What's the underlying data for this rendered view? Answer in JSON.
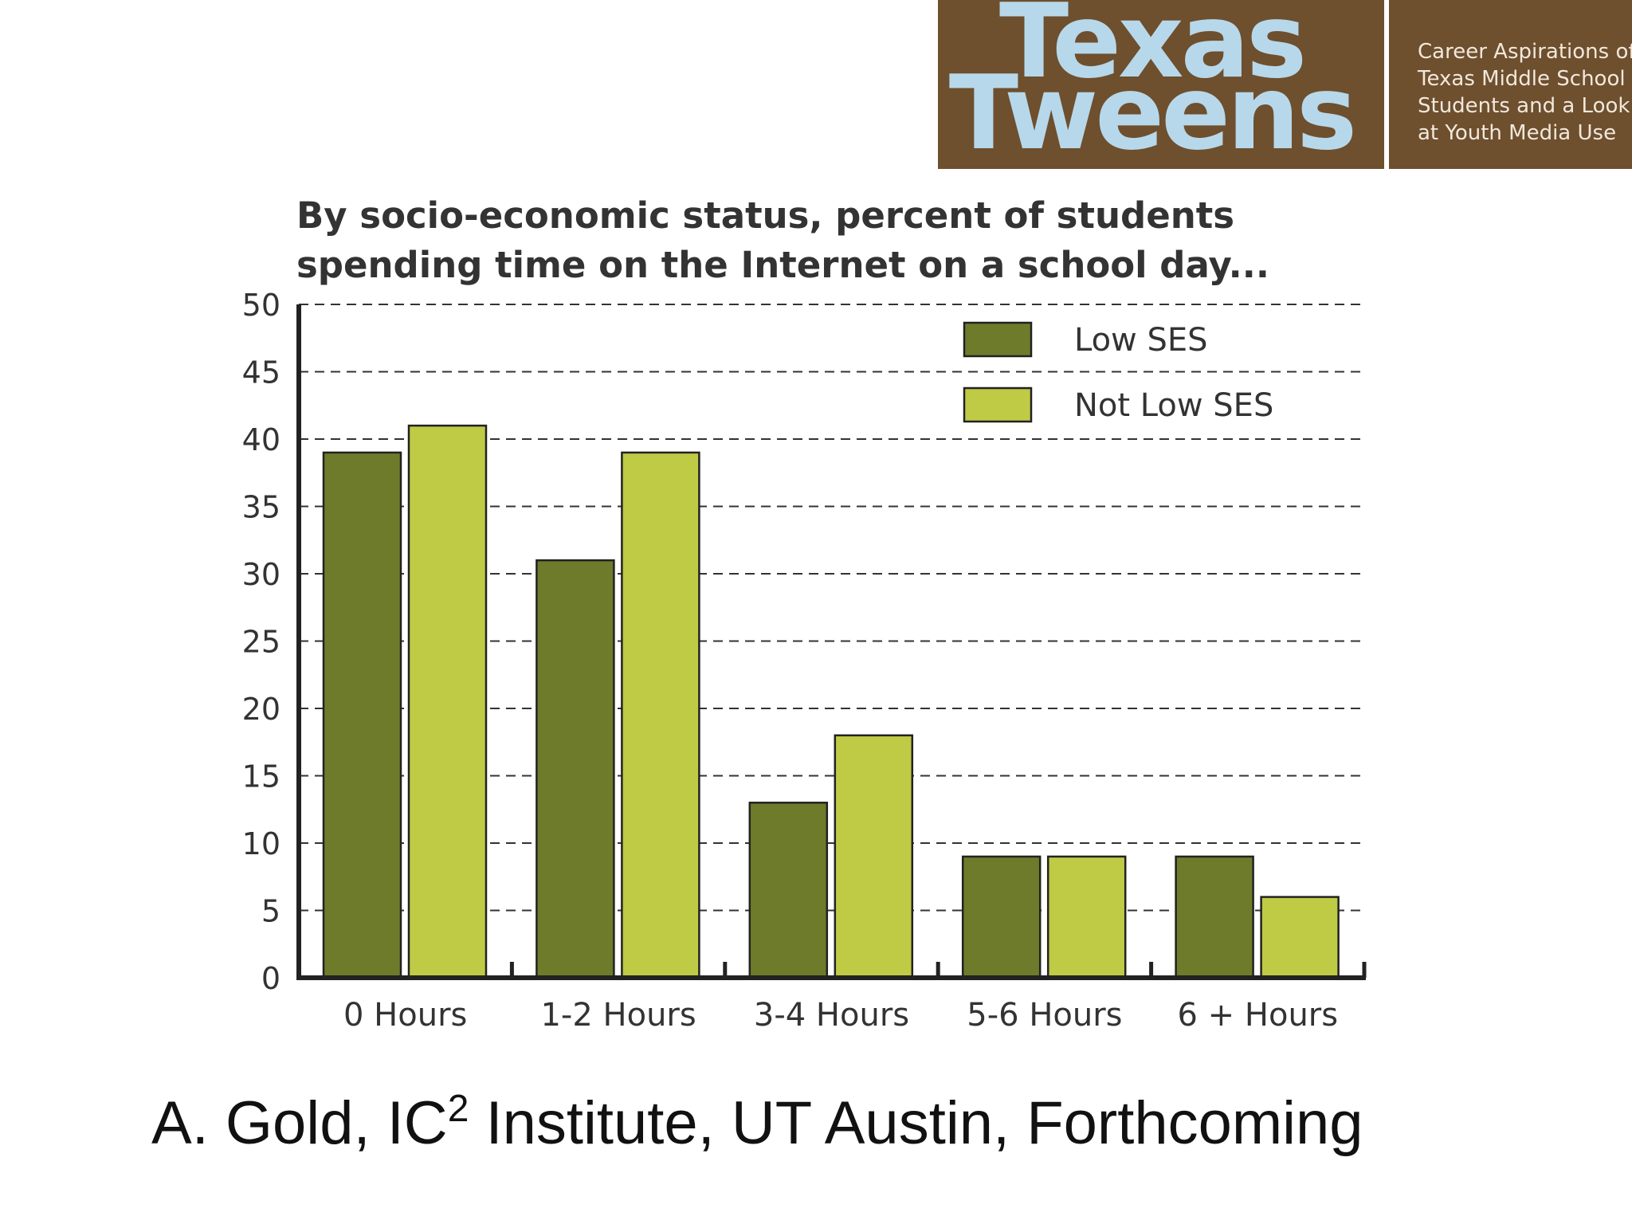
{
  "logo": {
    "line1": "Texas",
    "line2": "Tweens",
    "tagline": [
      "Career Aspirations of",
      "Texas Middle School",
      "Students and a Look",
      "at Youth Media Use"
    ],
    "bg_color": "#6e4f2e",
    "text_color": "#b7d8ea"
  },
  "chart_data": {
    "type": "bar",
    "title": [
      "By socio-economic status, percent of students",
      "spending time on the Internet on a school day..."
    ],
    "categories": [
      "0 Hours",
      "1-2 Hours",
      "3-4 Hours",
      "5-6 Hours",
      "6 + Hours"
    ],
    "series": [
      {
        "name": "Low SES",
        "color": "#6e7b2a",
        "values": [
          39,
          31,
          13,
          9,
          9
        ]
      },
      {
        "name": "Not Low SES",
        "color": "#bfca45",
        "values": [
          41,
          39,
          18,
          9,
          6
        ]
      }
    ],
    "ylim": [
      0,
      50
    ],
    "yticks": [
      0,
      5,
      10,
      15,
      20,
      25,
      30,
      35,
      40,
      45,
      50
    ],
    "grid": true,
    "legend": "top-right"
  },
  "footer": {
    "prefix": "A. Gold, IC",
    "superscript": "2",
    "suffix": " Institute, UT Austin, Forthcoming"
  }
}
